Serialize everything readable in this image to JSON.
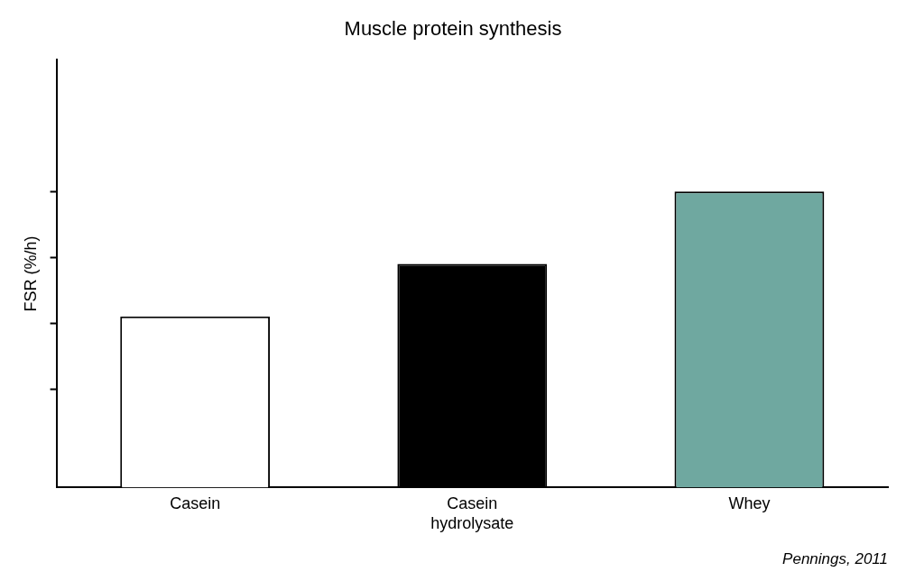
{
  "chart_data": {
    "type": "bar",
    "title": "Muscle protein synthesis",
    "y_label": "FSR (%/h)",
    "categories": [
      "Casein",
      "Casein\nhydrolysate",
      "Whey"
    ],
    "values": [
      0.052,
      0.068,
      0.09
    ],
    "colors": [
      "#ffffff",
      "#000000",
      "#6fa8a0"
    ],
    "ylim": [
      0,
      0.13
    ],
    "yticks": [
      0.03,
      0.05,
      0.07,
      0.09
    ],
    "grid": false,
    "tick_labels": "x",
    "annotation": "Pennings, 2011"
  }
}
